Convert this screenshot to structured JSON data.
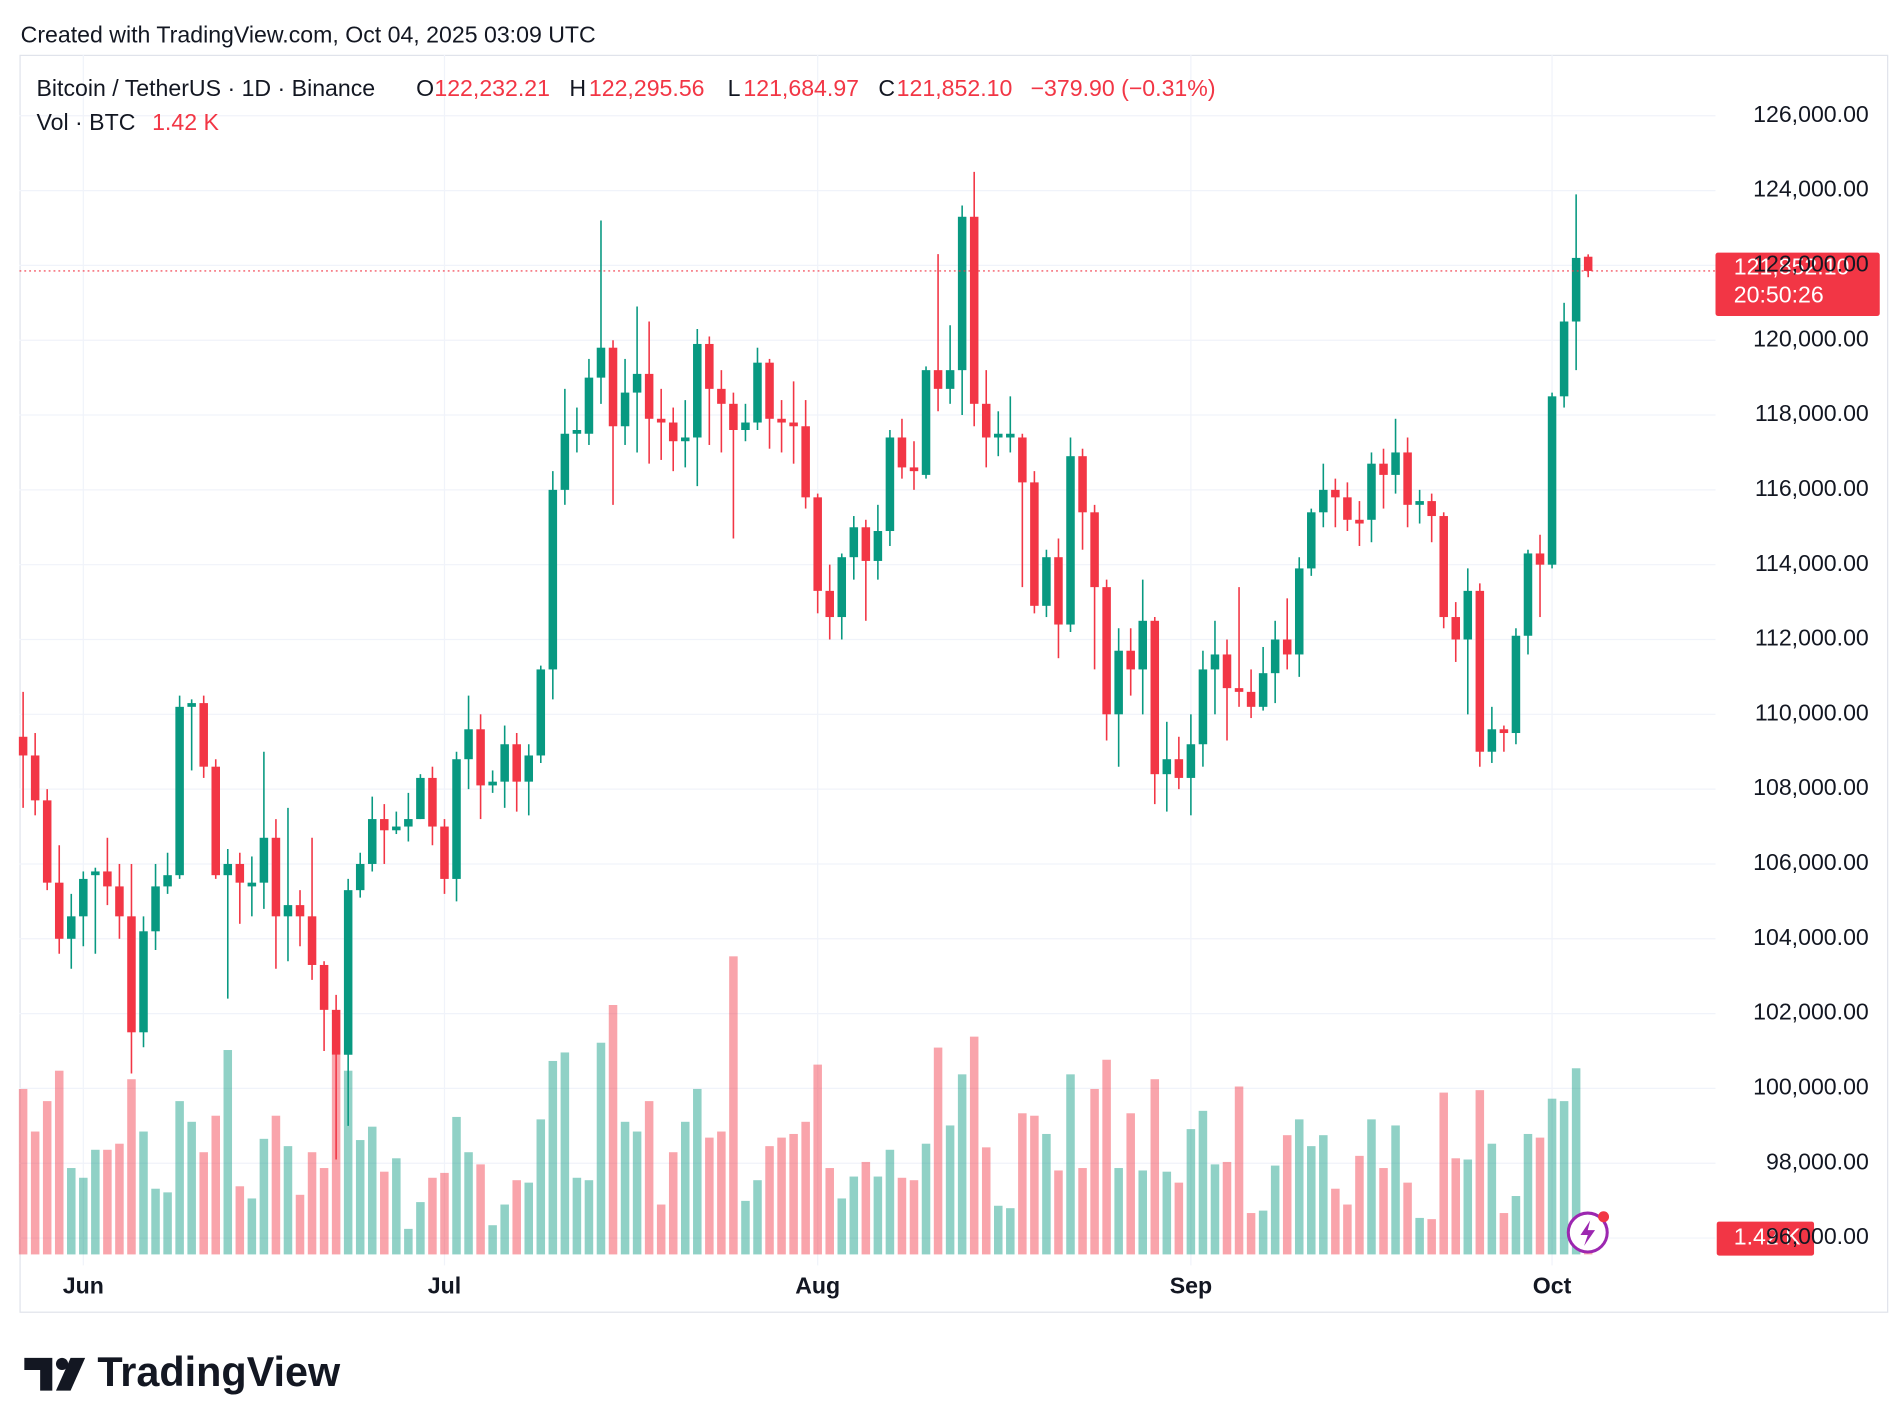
{
  "chart_data": {
    "type": "candlestick",
    "created": "Created with TradingView.com, Oct 04, 2025 03:09 UTC",
    "symbol": "Bitcoin / TetherUS · 1D · Binance",
    "ohlc_letters": [
      "O",
      "H",
      "L",
      "C"
    ],
    "ohlc_labels": [
      "122,232.21",
      "122,295.56",
      "121,684.97",
      "121,852.10"
    ],
    "change": "−379.90 (−0.31%)",
    "volume_title": "Vol · BTC",
    "volume_label": "1.42 K",
    "countdown": "20:50:26",
    "logo": "TradingView",
    "up_color": "#089981",
    "down_color": "#f23645",
    "grid": true,
    "categories": [
      null,
      null,
      null,
      null,
      null,
      "Jun",
      null,
      null,
      null,
      null,
      null,
      null,
      null,
      null,
      null,
      null,
      null,
      null,
      null,
      null,
      null,
      null,
      null,
      null,
      null,
      null,
      null,
      null,
      null,
      null,
      null,
      null,
      null,
      null,
      null,
      "Jul",
      null,
      null,
      null,
      null,
      null,
      null,
      null,
      null,
      null,
      null,
      null,
      null,
      null,
      null,
      null,
      null,
      null,
      null,
      null,
      null,
      null,
      null,
      null,
      null,
      null,
      null,
      null,
      null,
      null,
      null,
      "Aug",
      null,
      null,
      null,
      null,
      null,
      null,
      null,
      null,
      null,
      null,
      null,
      null,
      null,
      null,
      null,
      null,
      null,
      null,
      null,
      null,
      null,
      null,
      null,
      null,
      null,
      null,
      null,
      null,
      null,
      null,
      "Sep",
      null,
      null,
      null,
      null,
      null,
      null,
      null,
      null,
      null,
      null,
      null,
      null,
      null,
      null,
      null,
      null,
      null,
      null,
      null,
      null,
      null,
      null,
      null,
      null,
      null,
      null,
      null,
      null,
      null,
      "Oct",
      null,
      null,
      null
    ],
    "open": [
      109400,
      108900,
      107700,
      105500,
      104000,
      104600,
      105700,
      105800,
      105400,
      104600,
      101500,
      104200,
      105400,
      105700,
      110200,
      110300,
      108600,
      105700,
      106000,
      105400,
      105500,
      106700,
      104600,
      104900,
      104600,
      103300,
      102100,
      100900,
      105300,
      106000,
      107200,
      106900,
      107000,
      107200,
      108300,
      107000,
      105600,
      108800,
      109600,
      108100,
      108200,
      109200,
      108200,
      108900,
      111200,
      116000,
      117500,
      117500,
      119000,
      119800,
      117700,
      118600,
      119100,
      117900,
      117800,
      117300,
      117400,
      119900,
      118700,
      118300,
      117600,
      117800,
      119400,
      117900,
      117800,
      117700,
      115800,
      113300,
      112600,
      114200,
      115000,
      114100,
      114900,
      117400,
      116600,
      116400,
      119200,
      118700,
      119200,
      123300,
      118300,
      117400,
      117400,
      117400,
      116200,
      112900,
      114200,
      112400,
      116900,
      115400,
      113400,
      110000,
      111700,
      111200,
      112500,
      108400,
      108800,
      108300,
      109200,
      111200,
      111600,
      110700,
      110600,
      110200,
      111100,
      112000,
      111600,
      113900,
      115400,
      116000,
      115800,
      115200,
      115200,
      116700,
      116400,
      117000,
      115600,
      115700,
      115300,
      112600,
      112000,
      113300,
      109000,
      109600,
      109500,
      112100,
      114300,
      114000,
      118500,
      120500,
      122232.21
    ],
    "high": [
      110600,
      109500,
      108000,
      106500,
      105200,
      105800,
      105900,
      106700,
      106000,
      106000,
      104600,
      106000,
      106300,
      110500,
      110400,
      110500,
      108800,
      106400,
      106300,
      106200,
      109000,
      107200,
      107500,
      105300,
      106700,
      103400,
      102500,
      105600,
      106300,
      107800,
      107600,
      107400,
      107900,
      108400,
      108600,
      107200,
      109000,
      110500,
      110000,
      108500,
      109700,
      109500,
      109200,
      111300,
      116500,
      118700,
      118200,
      119500,
      123200,
      120000,
      119500,
      120900,
      120500,
      118700,
      118200,
      118400,
      120300,
      120100,
      119200,
      118600,
      118300,
      119800,
      119500,
      118400,
      118900,
      118400,
      115900,
      114000,
      114300,
      115300,
      115200,
      115600,
      117600,
      117900,
      117300,
      119300,
      122300,
      120400,
      123600,
      124500,
      119200,
      118100,
      118500,
      117500,
      116500,
      114400,
      114700,
      117400,
      117100,
      115600,
      113600,
      112300,
      112300,
      113600,
      112600,
      109800,
      109400,
      110000,
      111700,
      112500,
      112000,
      113400,
      111200,
      111800,
      112500,
      113100,
      114200,
      115500,
      116700,
      116300,
      116200,
      115700,
      117000,
      117100,
      117900,
      117400,
      116000,
      115900,
      115400,
      113000,
      113900,
      113500,
      110200,
      109700,
      112300,
      114400,
      114800,
      118600,
      121000,
      123900,
      122295.56
    ],
    "low": [
      107500,
      107300,
      105300,
      103600,
      103200,
      103800,
      103600,
      104900,
      104000,
      100400,
      101100,
      103700,
      105200,
      105600,
      108500,
      108300,
      105600,
      102400,
      104400,
      104600,
      104800,
      103200,
      103400,
      103800,
      102900,
      101000,
      98100,
      99000,
      105100,
      105800,
      106000,
      106800,
      106600,
      107200,
      106500,
      105200,
      105000,
      108000,
      107200,
      107900,
      107500,
      107400,
      107300,
      108700,
      110400,
      115600,
      117000,
      117200,
      118300,
      115600,
      117200,
      117000,
      116700,
      116800,
      116500,
      116600,
      116100,
      117200,
      117000,
      114700,
      117300,
      117600,
      117100,
      117000,
      116700,
      115500,
      112700,
      112000,
      112000,
      113600,
      112500,
      113600,
      114500,
      116300,
      116000,
      116300,
      118100,
      118300,
      118000,
      117700,
      116600,
      116900,
      117000,
      113400,
      112700,
      112600,
      111500,
      112200,
      114400,
      111200,
      109300,
      108600,
      110500,
      110000,
      107600,
      107400,
      108000,
      107300,
      108600,
      110000,
      109300,
      110200,
      109900,
      110100,
      110300,
      111200,
      111000,
      113700,
      115000,
      115000,
      114900,
      114500,
      114600,
      115500,
      115900,
      115000,
      115100,
      114600,
      112300,
      111400,
      110000,
      108600,
      108700,
      109000,
      109200,
      111600,
      112600,
      113900,
      118200,
      119200,
      121684.97
    ],
    "close": [
      108900,
      107700,
      105500,
      104000,
      104600,
      105600,
      105800,
      105400,
      104600,
      101500,
      104200,
      105400,
      105700,
      110200,
      110300,
      108600,
      105700,
      106000,
      105500,
      105500,
      106700,
      104600,
      104900,
      104600,
      103300,
      102100,
      100900,
      105300,
      106000,
      107200,
      106900,
      107000,
      107200,
      108300,
      107000,
      105600,
      108800,
      109600,
      108100,
      108200,
      109200,
      108200,
      108900,
      111200,
      116000,
      117500,
      117600,
      119000,
      119800,
      117700,
      118600,
      119100,
      117900,
      117800,
      117300,
      117400,
      119900,
      118700,
      118300,
      117600,
      117800,
      119400,
      117900,
      117800,
      117700,
      115800,
      113300,
      112600,
      114200,
      115000,
      114100,
      114900,
      117400,
      116600,
      116500,
      119200,
      118700,
      119200,
      123300,
      118300,
      117400,
      117500,
      117500,
      116200,
      112900,
      114200,
      112400,
      116900,
      115400,
      113400,
      110000,
      111700,
      111200,
      112500,
      108400,
      108800,
      108300,
      109200,
      111200,
      111600,
      110700,
      110600,
      110200,
      111100,
      112000,
      111600,
      113900,
      115400,
      116000,
      115800,
      115200,
      115100,
      116700,
      116400,
      117000,
      115600,
      115700,
      115300,
      112600,
      112000,
      113300,
      109000,
      109600,
      109500,
      112100,
      114300,
      114000,
      118500,
      120500,
      122200,
      121852.1
    ],
    "volume": [
      20400,
      15150,
      18900,
      22650,
      10650,
      9450,
      12900,
      12900,
      13650,
      21600,
      15150,
      8100,
      7650,
      18900,
      16350,
      12600,
      17100,
      25200,
      8400,
      6900,
      14250,
      17100,
      13350,
      7350,
      12600,
      10650,
      24600,
      22650,
      14100,
      15750,
      10200,
      11850,
      3150,
      6450,
      9450,
      10050,
      16950,
      12600,
      11100,
      3600,
      6150,
      9150,
      8850,
      16650,
      23850,
      24900,
      9450,
      9150,
      26100,
      30750,
      16350,
      15150,
      18900,
      6150,
      12600,
      16350,
      20400,
      14400,
      15150,
      36750,
      6600,
      9150,
      13350,
      14400,
      14850,
      16350,
      23400,
      10650,
      6900,
      9600,
      11400,
      9600,
      12900,
      9450,
      9150,
      13650,
      25500,
      15900,
      22200,
      26850,
      13200,
      6000,
      5700,
      17400,
      17100,
      14850,
      10350,
      22200,
      10650,
      20400,
      24000,
      10650,
      17400,
      10350,
      21600,
      10200,
      8850,
      15450,
      17700,
      11100,
      11400,
      20700,
      5100,
      5400,
      10950,
      14700,
      16650,
      13350,
      14700,
      8100,
      6150,
      12150,
      16650,
      10650,
      15900,
      8850,
      4500,
      4350,
      19950,
      11850,
      11700,
      20250,
      13650,
      5100,
      7200,
      14850,
      14400,
      19200,
      18900,
      22950,
      1420
    ],
    "ylim": [
      95270,
      127630
    ],
    "yticks": [
      {
        "value": 96000,
        "label": "96,000.00"
      },
      {
        "value": 98000,
        "label": "98,000.00"
      },
      {
        "value": 100000,
        "label": "100,000.00"
      },
      {
        "value": 102000,
        "label": "102,000.00"
      },
      {
        "value": 104000,
        "label": "104,000.00"
      },
      {
        "value": 106000,
        "label": "106,000.00"
      },
      {
        "value": 108000,
        "label": "108,000.00"
      },
      {
        "value": 110000,
        "label": "110,000.00"
      },
      {
        "value": 112000,
        "label": "112,000.00"
      },
      {
        "value": 114000,
        "label": "114,000.00"
      },
      {
        "value": 116000,
        "label": "116,000.00"
      },
      {
        "value": 118000,
        "label": "118,000.00"
      },
      {
        "value": 120000,
        "label": "120,000.00"
      },
      {
        "value": 122000,
        "label": "122,000.00"
      },
      {
        "value": 124000,
        "label": "124,000.00"
      },
      {
        "value": 126000,
        "label": "126,000.00"
      }
    ]
  }
}
